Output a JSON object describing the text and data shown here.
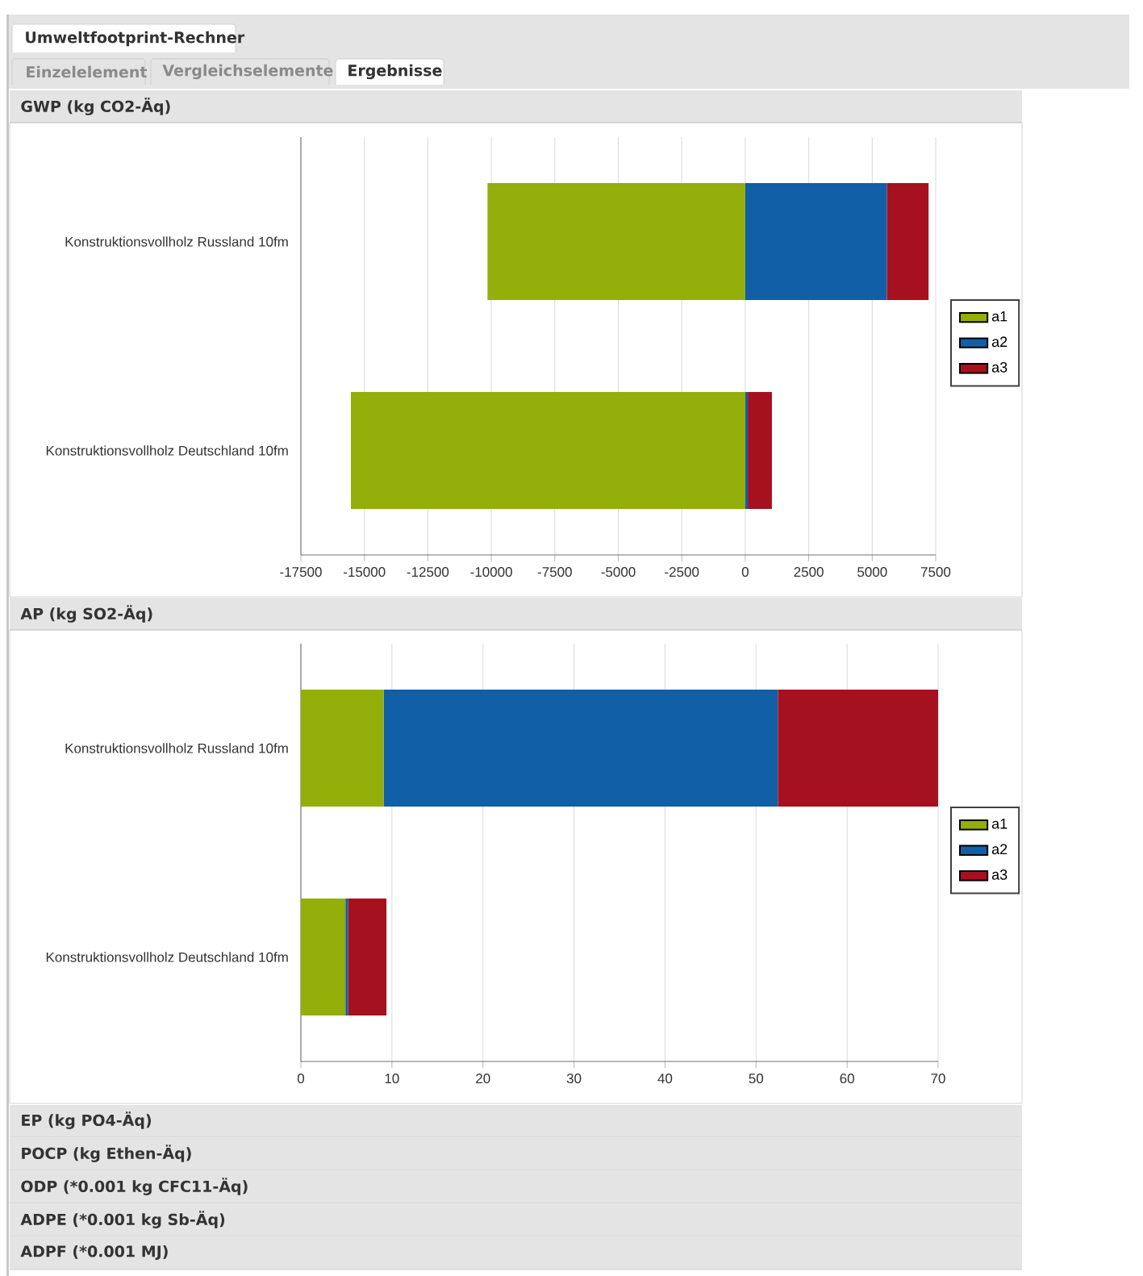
{
  "chart_data": [
    {
      "type": "bar",
      "title": "GWP (kg CO2-Äq)",
      "orientation": "horizontal",
      "stacked": true,
      "categories": [
        "Konstruktionsvollholz Russland 10fm",
        "Konstruktionsvollholz Deutschland 10fm"
      ],
      "series": [
        {
          "name": "a1",
          "color": "#94ae0a",
          "values": [
            -10150,
            -15530
          ]
        },
        {
          "name": "a2",
          "color": "#115fa6",
          "values": [
            5580,
            100
          ]
        },
        {
          "name": "a3",
          "color": "#a61120",
          "values": [
            1640,
            950
          ]
        }
      ],
      "xlim": [
        -17500,
        7500
      ],
      "xticks": [
        -17500,
        -15000,
        -12500,
        -10000,
        -7500,
        -5000,
        -2500,
        0,
        2500,
        5000,
        7500
      ],
      "grid": "x",
      "legend": "right",
      "annotations": [
        "Umweltfootprint-Rechner",
        "Einzelelement",
        "Vergleichselemente",
        "Ergebnisse"
      ]
    },
    {
      "type": "bar",
      "title": "AP (kg SO2-Äq)",
      "orientation": "horizontal",
      "stacked": true,
      "categories": [
        "Konstruktionsvollholz Russland 10fm",
        "Konstruktionsvollholz Deutschland 10fm"
      ],
      "series": [
        {
          "name": "a1",
          "color": "#94ae0a",
          "values": [
            9.1,
            4.9
          ]
        },
        {
          "name": "a2",
          "color": "#115fa6",
          "values": [
            43.3,
            0.3
          ]
        },
        {
          "name": "a3",
          "color": "#a61120",
          "values": [
            17.6,
            4.2
          ]
        }
      ],
      "xlim": [
        0,
        70
      ],
      "xticks": [
        0,
        10,
        20,
        30,
        40,
        50,
        60,
        70
      ],
      "grid": "x",
      "legend": "right",
      "annotations": [
        "EP (kg PO4-Äq)",
        "POCP (kg Ethen-Äq)",
        "ODP (*0.001 kg CFC11-Äq)",
        "ADPE (*0.001 kg Sb-Äq)",
        "ADPF (*0.001 MJ)"
      ]
    }
  ]
}
